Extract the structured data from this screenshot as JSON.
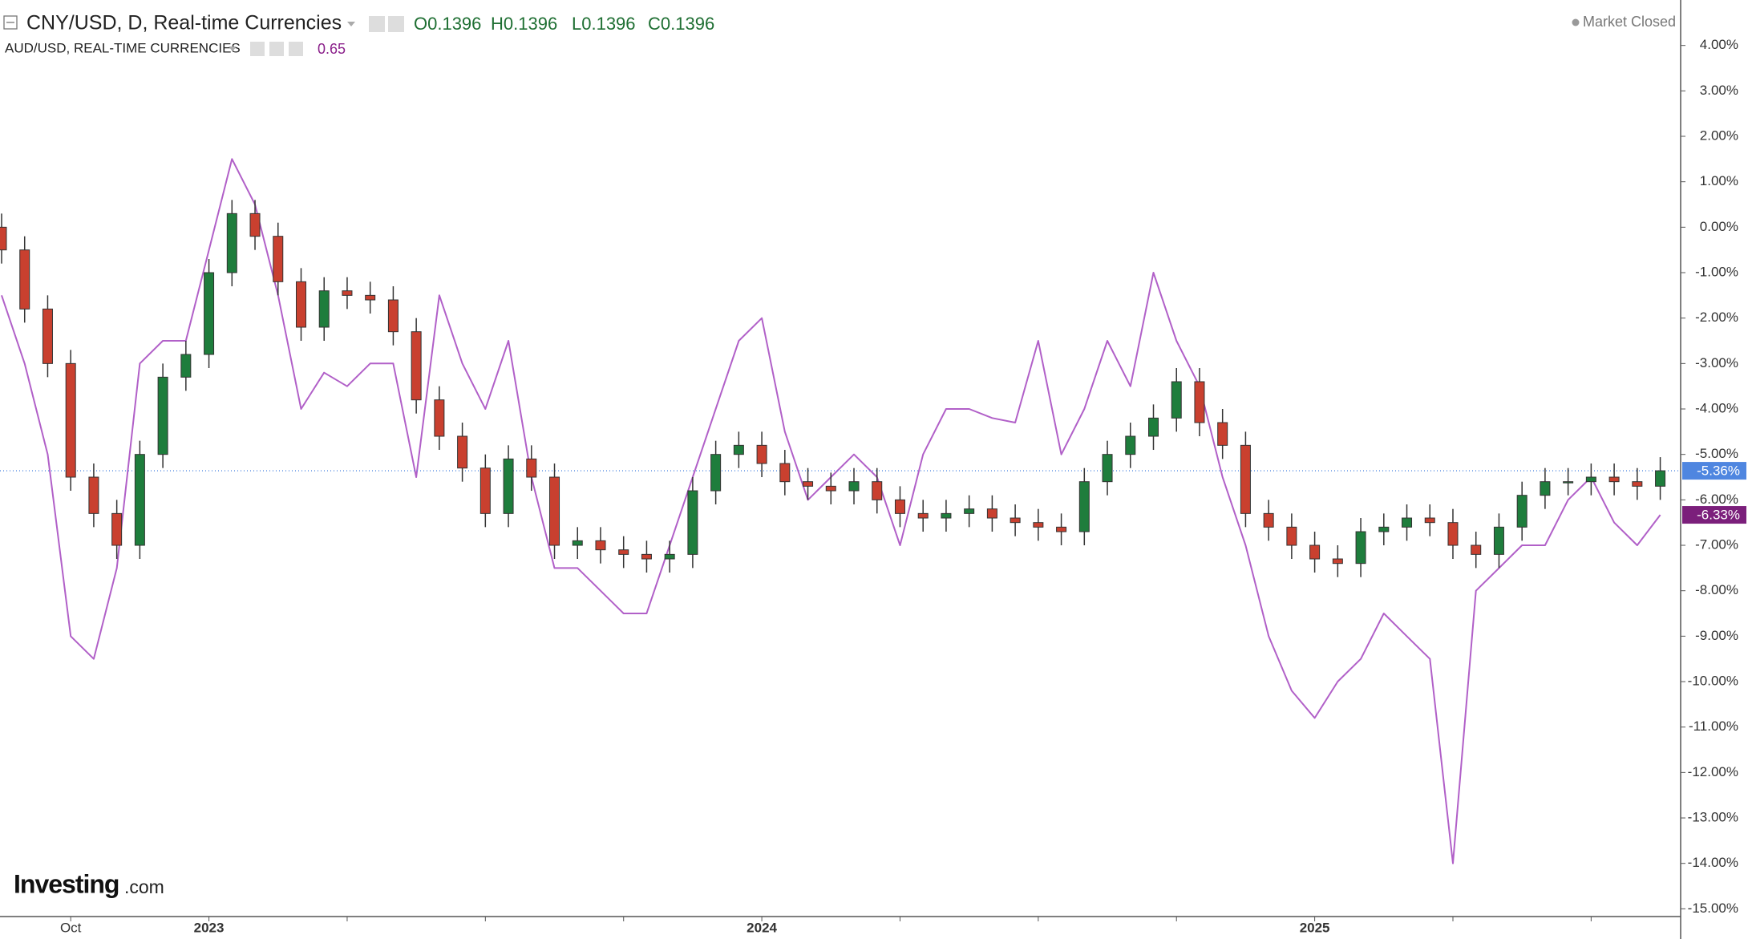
{
  "header": {
    "title": "CNY/USD, D, Real-time Currencies",
    "quote": [
      "O0.1396",
      "H0.1396",
      "L0.1396",
      "C0.1396"
    ],
    "compare_title": "AUD/USD, REAL-TIME CURRENCIES",
    "compare_quote": "0.65",
    "status": "Market Closed"
  },
  "brand": {
    "name": "Investing",
    "suffix": ".com"
  },
  "chart_data": {
    "type": "candlestick",
    "categories": [
      null,
      null,
      null,
      "Oct",
      null,
      null,
      null,
      null,
      null,
      "2023",
      null,
      null,
      null,
      null,
      null,
      null,
      null,
      null,
      null,
      null,
      null,
      null,
      null,
      null,
      null,
      null,
      null,
      null,
      null,
      null,
      null,
      null,
      null,
      "2024",
      null,
      null,
      null,
      null,
      null,
      null,
      null,
      null,
      null,
      null,
      null,
      null,
      null,
      null,
      null,
      null,
      null,
      null,
      null,
      null,
      null,
      null,
      null,
      "2025",
      null,
      null,
      null,
      null,
      null,
      null,
      null,
      null,
      null,
      null,
      null,
      null,
      null,
      null,
      null
    ],
    "series": [
      {
        "name": "CNY/USD",
        "type": "candlestick",
        "up_color": "#1e7d3c",
        "down_color": "#c9402f",
        "last_value_label": "-5.36%",
        "tag_color": "#4f86e0",
        "open": [
          0.0,
          -0.5,
          -1.8,
          -3.0,
          -5.5,
          -6.3,
          -7.0,
          -5.0,
          -3.3,
          -2.8,
          -1.0,
          0.3,
          -0.2,
          -1.2,
          -2.2,
          -1.4,
          -1.5,
          -1.6,
          -2.3,
          -3.8,
          -4.6,
          -5.3,
          -6.3,
          -5.1,
          -5.5,
          -7.0,
          -6.9,
          -7.1,
          -7.2,
          -7.3,
          -7.2,
          -5.8,
          -5.0,
          -4.8,
          -5.2,
          -5.6,
          -5.7,
          -5.8,
          -5.6,
          -6.0,
          -6.3,
          -6.4,
          -6.3,
          -6.2,
          -6.4,
          -6.5,
          -6.6,
          -6.7,
          -5.6,
          -5.0,
          -4.6,
          -4.2,
          -3.4,
          -4.3,
          -4.8,
          -6.3,
          -6.6,
          -7.0,
          -7.3,
          -7.4,
          -6.7,
          -6.6,
          -6.4,
          -6.5,
          -7.0,
          -7.2,
          -6.6,
          -5.9,
          -5.6,
          -5.6,
          -5.5,
          -5.6,
          -5.7
        ],
        "high": [
          0.3,
          -0.2,
          -1.5,
          -2.7,
          -5.2,
          -6.0,
          -4.7,
          -3.0,
          -2.5,
          -0.7,
          0.6,
          0.6,
          0.1,
          -0.9,
          -1.1,
          -1.1,
          -1.2,
          -1.3,
          -2.0,
          -3.5,
          -4.3,
          -5.0,
          -4.8,
          -4.8,
          -5.2,
          -6.6,
          -6.6,
          -6.8,
          -6.9,
          -6.9,
          -5.5,
          -4.7,
          -4.5,
          -4.5,
          -4.9,
          -5.3,
          -5.4,
          -5.3,
          -5.3,
          -5.7,
          -6.0,
          -6.0,
          -5.9,
          -5.9,
          -6.1,
          -6.2,
          -6.3,
          -5.3,
          -4.7,
          -4.3,
          -3.9,
          -3.1,
          -3.1,
          -4.0,
          -4.5,
          -6.0,
          -6.3,
          -6.7,
          -7.0,
          -6.4,
          -6.3,
          -6.1,
          -6.1,
          -6.2,
          -6.7,
          -6.3,
          -5.6,
          -5.3,
          -5.3,
          -5.2,
          -5.2,
          -5.3,
          -5.06
        ],
        "low": [
          -0.8,
          -2.1,
          -3.3,
          -5.8,
          -6.6,
          -7.3,
          -7.3,
          -5.3,
          -3.6,
          -3.1,
          -1.3,
          -0.5,
          -1.5,
          -2.5,
          -2.5,
          -1.8,
          -1.9,
          -2.6,
          -4.1,
          -4.9,
          -5.6,
          -6.6,
          -6.6,
          -5.8,
          -7.3,
          -7.3,
          -7.4,
          -7.5,
          -7.6,
          -7.6,
          -7.5,
          -6.1,
          -5.3,
          -5.5,
          -5.9,
          -6.0,
          -6.1,
          -6.1,
          -6.3,
          -6.6,
          -6.7,
          -6.7,
          -6.6,
          -6.7,
          -6.8,
          -6.9,
          -7.0,
          -7.0,
          -5.9,
          -5.3,
          -4.9,
          -4.5,
          -4.6,
          -5.1,
          -6.6,
          -6.9,
          -7.3,
          -7.6,
          -7.7,
          -7.7,
          -7.0,
          -6.9,
          -6.8,
          -7.3,
          -7.5,
          -7.5,
          -6.9,
          -6.2,
          -5.9,
          -5.9,
          -5.9,
          -6.0,
          -6.0
        ],
        "close": [
          -0.5,
          -1.8,
          -3.0,
          -5.5,
          -6.3,
          -7.0,
          -5.0,
          -3.3,
          -2.8,
          -1.0,
          0.3,
          -0.2,
          -1.2,
          -2.2,
          -1.4,
          -1.5,
          -1.6,
          -2.3,
          -3.8,
          -4.6,
          -5.3,
          -6.3,
          -5.1,
          -5.5,
          -7.0,
          -6.9,
          -7.1,
          -7.2,
          -7.3,
          -7.2,
          -5.8,
          -5.0,
          -4.8,
          -5.2,
          -5.6,
          -5.7,
          -5.8,
          -5.6,
          -6.0,
          -6.3,
          -6.4,
          -6.3,
          -6.2,
          -6.4,
          -6.5,
          -6.6,
          -6.7,
          -5.6,
          -5.0,
          -4.6,
          -4.2,
          -3.4,
          -4.3,
          -4.8,
          -6.3,
          -6.6,
          -7.0,
          -7.3,
          -7.4,
          -6.7,
          -6.6,
          -6.4,
          -6.5,
          -7.0,
          -7.2,
          -6.6,
          -5.9,
          -5.6,
          -5.6,
          -5.5,
          -5.6,
          -5.7,
          -5.36
        ]
      },
      {
        "name": "AUD/USD",
        "type": "line",
        "color": "#b160c8",
        "last_value_label": "-6.33%",
        "tag_color": "#7b1f7b",
        "values": [
          -1.5,
          -3.0,
          -5.0,
          -9.0,
          -9.5,
          -7.5,
          -3.0,
          -2.5,
          -2.5,
          -0.5,
          1.5,
          0.5,
          -1.5,
          -4.0,
          -3.2,
          -3.5,
          -3.0,
          -3.0,
          -5.5,
          -1.5,
          -3.0,
          -4.0,
          -2.5,
          -5.5,
          -7.5,
          -7.5,
          -8.0,
          -8.5,
          -8.5,
          -7.0,
          -5.5,
          -4.0,
          -2.5,
          -2.0,
          -4.5,
          -6.0,
          -5.5,
          -5.0,
          -5.5,
          -7.0,
          -5.0,
          -4.0,
          -4.0,
          -4.2,
          -4.3,
          -2.5,
          -5.0,
          -4.0,
          -2.5,
          -3.5,
          -1.0,
          -2.5,
          -3.5,
          -5.5,
          -7.0,
          -9.0,
          -10.2,
          -10.8,
          -10.0,
          -9.5,
          -8.5,
          -9.0,
          -9.5,
          -14.0,
          -8.0,
          -7.5,
          -7.0,
          -7.0,
          -6.0,
          -5.5,
          -6.5,
          -7.0,
          -6.33
        ]
      }
    ],
    "ylim": [
      -15.17,
      5.0
    ],
    "yticks": [
      {
        "value": 4,
        "label": "4.00%"
      },
      {
        "value": 3,
        "label": "3.00%"
      },
      {
        "value": 2,
        "label": "2.00%"
      },
      {
        "value": 1,
        "label": "1.00%"
      },
      {
        "value": 0,
        "label": "0.00%"
      },
      {
        "value": -1,
        "label": "-1.00%"
      },
      {
        "value": -2,
        "label": "-2.00%"
      },
      {
        "value": -3,
        "label": "-3.00%"
      },
      {
        "value": -4,
        "label": "-4.00%"
      },
      {
        "value": -5,
        "label": "-5.00%"
      },
      {
        "value": -6,
        "label": "-6.00%"
      },
      {
        "value": -7,
        "label": "-7.00%"
      },
      {
        "value": -8,
        "label": "-8.00%"
      },
      {
        "value": -9,
        "label": "-9.00%"
      },
      {
        "value": -10,
        "label": "-10.00%"
      },
      {
        "value": -11,
        "label": "-11.00%"
      },
      {
        "value": -12,
        "label": "-12.00%"
      },
      {
        "value": -13,
        "label": "-13.00%"
      },
      {
        "value": -14,
        "label": "-14.00%"
      },
      {
        "value": -15,
        "label": "-15.00%"
      }
    ],
    "grid": false
  }
}
